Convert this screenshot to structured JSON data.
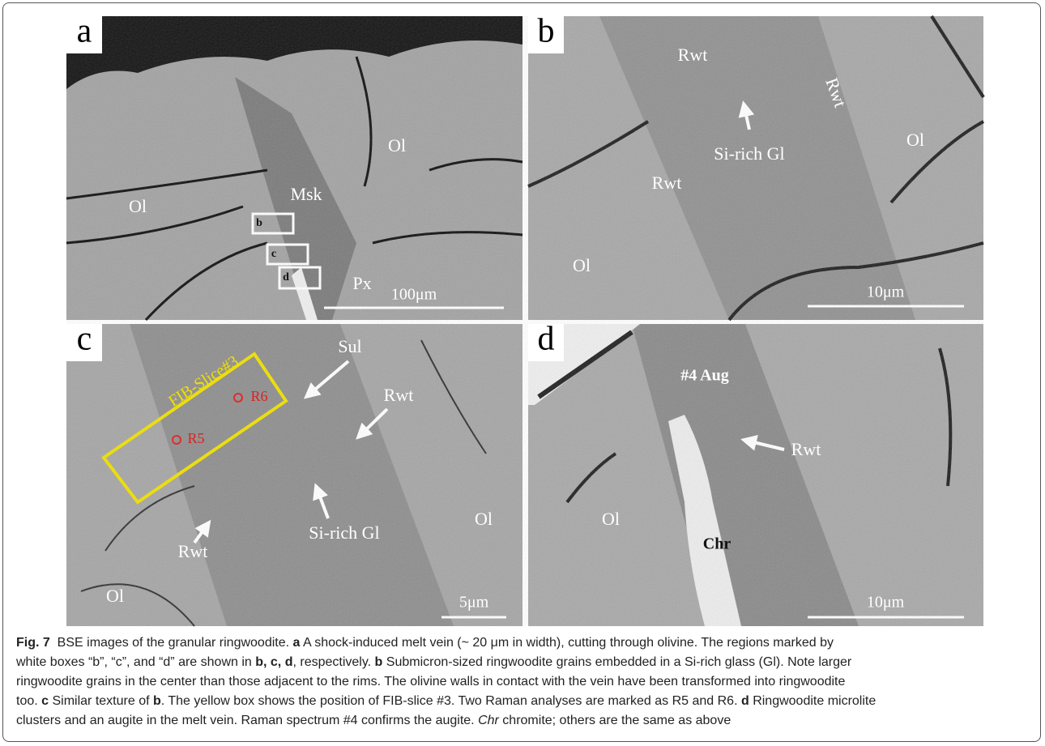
{
  "panels": [
    {
      "letter": "a",
      "labels": [
        "Ol",
        "Ol",
        "Msk",
        "Px",
        "b",
        "c",
        "d"
      ],
      "scale": "100μm"
    },
    {
      "letter": "b",
      "labels": [
        "Rwt",
        "Rwt",
        "Si-rich Gl",
        "Ol",
        "Rwt",
        "Ol"
      ],
      "scale": "10μm"
    },
    {
      "letter": "c",
      "labels": [
        "Sul",
        "FIB-Slice#3",
        "R6",
        "R5",
        "Rwt",
        "Si-rich Gl",
        "Rwt",
        "Ol",
        "Ol"
      ],
      "scale": "5μm"
    },
    {
      "letter": "d",
      "labels": [
        "#4 Aug",
        "Rwt",
        "Ol",
        "Chr"
      ],
      "scale": "10μm"
    }
  ],
  "caption": {
    "lines": [
      [
        {
          "text": "Fig. 7",
          "style": "bold"
        },
        {
          "text": "  BSE images of the granular ringwoodite. "
        },
        {
          "text": "a",
          "style": "bold"
        },
        {
          "text": " A shock-induced melt vein (~ 20 μm in width), cutting through olivine. The regions marked by"
        }
      ],
      [
        {
          "text": "white boxes “b”, “c”, and “d” are shown in "
        },
        {
          "text": "b, c, d",
          "style": "bold"
        },
        {
          "text": ", respectively. "
        },
        {
          "text": "b",
          "style": "bold"
        },
        {
          "text": " Submicron-sized ringwoodite grains embedded in a Si-rich glass (Gl). Note larger"
        }
      ],
      [
        {
          "text": "ringwoodite grains in the center than those adjacent to the rims. The olivine walls in contact with the vein have been transformed into ringwoodite"
        }
      ],
      [
        {
          "text": "too. "
        },
        {
          "text": "c",
          "style": "bold"
        },
        {
          "text": " Similar texture of "
        },
        {
          "text": "b",
          "style": "bold"
        },
        {
          "text": ". The yellow box shows the position of FIB-slice #3. Two Raman analyses are marked as R5 and R6. "
        },
        {
          "text": "d",
          "style": "bold"
        },
        {
          "text": " Ringwoodite microlite"
        }
      ],
      [
        {
          "text": "clusters and an augite in the melt vein. Raman spectrum #4 confirms the augite. "
        },
        {
          "text": "Chr",
          "style": "italic"
        },
        {
          "text": " chromite; others are the same as above"
        }
      ]
    ]
  }
}
